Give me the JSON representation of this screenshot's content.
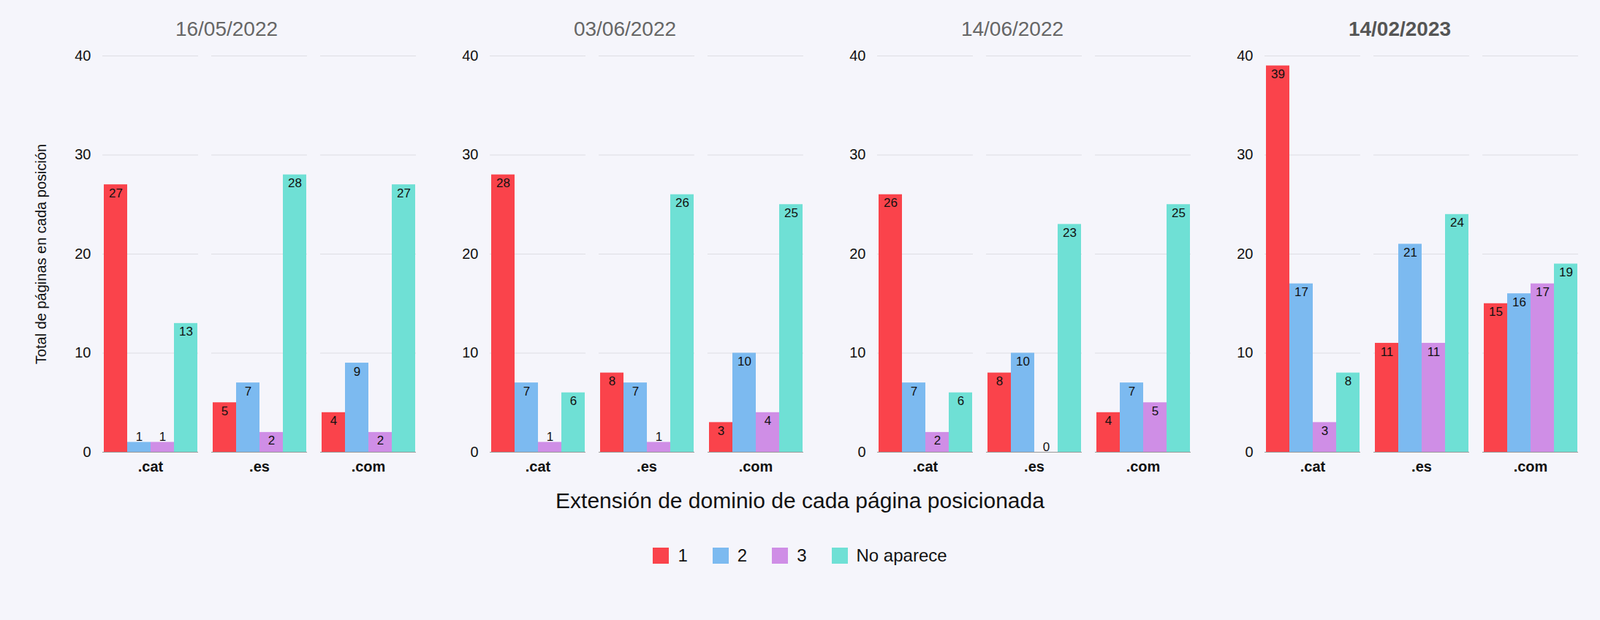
{
  "chart_data": {
    "type": "bar",
    "xlabel": "Extensión de dominio de cada página posicionada",
    "ylabel": "Total de páginas en cada posición",
    "categories": [
      ".cat",
      ".es",
      ".com"
    ],
    "ylim": [
      0,
      40
    ],
    "yticks": [
      0,
      10,
      20,
      30,
      40
    ],
    "grid": true,
    "data_labels": true,
    "legend": "bottom",
    "panels": [
      {
        "title": "16/05/2022",
        "series": [
          {
            "name": "1",
            "color": "#fa434b",
            "values": [
              27,
              5,
              4
            ]
          },
          {
            "name": "2",
            "color": "#7cbaf0",
            "values": [
              1,
              7,
              9
            ]
          },
          {
            "name": "3",
            "color": "#cf8ee6",
            "values": [
              1,
              2,
              2
            ]
          },
          {
            "name": "No aparece",
            "color": "#6fe0d5",
            "values": [
              13,
              28,
              27
            ]
          }
        ]
      },
      {
        "title": "03/06/2022",
        "series": [
          {
            "name": "1",
            "color": "#fa434b",
            "values": [
              28,
              8,
              3
            ]
          },
          {
            "name": "2",
            "color": "#7cbaf0",
            "values": [
              7,
              7,
              10
            ]
          },
          {
            "name": "3",
            "color": "#cf8ee6",
            "values": [
              1,
              1,
              4
            ]
          },
          {
            "name": "No aparece",
            "color": "#6fe0d5",
            "values": [
              6,
              26,
              25
            ]
          }
        ]
      },
      {
        "title": "14/06/2022",
        "series": [
          {
            "name": "1",
            "color": "#fa434b",
            "values": [
              26,
              8,
              4
            ]
          },
          {
            "name": "2",
            "color": "#7cbaf0",
            "values": [
              7,
              10,
              7
            ]
          },
          {
            "name": "3",
            "color": "#cf8ee6",
            "values": [
              2,
              0,
              5
            ]
          },
          {
            "name": "No aparece",
            "color": "#6fe0d5",
            "values": [
              6,
              23,
              25
            ]
          }
        ]
      },
      {
        "title": "14/02/2023",
        "series": [
          {
            "name": "1",
            "color": "#fa434b",
            "values": [
              39,
              11,
              15
            ]
          },
          {
            "name": "2",
            "color": "#7cbaf0",
            "values": [
              17,
              21,
              16
            ]
          },
          {
            "name": "3",
            "color": "#cf8ee6",
            "values": [
              3,
              11,
              17
            ]
          },
          {
            "name": "No aparece",
            "color": "#6fe0d5",
            "values": [
              8,
              24,
              19
            ]
          }
        ]
      }
    ]
  }
}
